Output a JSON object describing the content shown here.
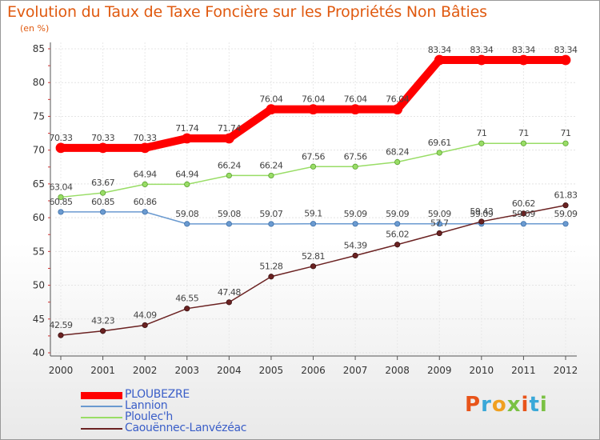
{
  "chart_data": {
    "type": "line",
    "title": "Evolution du Taux de Taxe Foncière sur les Propriétés Non Bâties",
    "subtitle": "(en %)",
    "x": [
      "2000",
      "2001",
      "2002",
      "2003",
      "2004",
      "2005",
      "2006",
      "2007",
      "2008",
      "2009",
      "2010",
      "2011",
      "2012"
    ],
    "ylim": [
      40,
      85
    ],
    "yticks": [
      40,
      45,
      50,
      55,
      60,
      65,
      70,
      75,
      80,
      85
    ],
    "grid": true,
    "legend_position": "bottom-left",
    "series": [
      {
        "name": "PLOUBEZRE",
        "color": "#ff0000",
        "values": [
          70.33,
          70.33,
          70.33,
          71.74,
          71.74,
          76.04,
          76.04,
          76.04,
          76.04,
          83.34,
          83.34,
          83.34,
          83.34
        ],
        "labels": [
          "70.33",
          "70.33",
          "70.33",
          "71.74",
          "71.74",
          "76.04",
          "76.04",
          "76.04",
          "76.04",
          "83.34",
          "83.34",
          "83.34",
          "83.34"
        ]
      },
      {
        "name": "Lannion",
        "color": "#6a9ad0",
        "values": [
          60.85,
          60.85,
          60.86,
          59.08,
          59.08,
          59.07,
          59.1,
          59.09,
          59.09,
          59.09,
          59.09,
          59.09,
          59.09
        ],
        "labels": [
          "60.85",
          "60.85",
          "60.86",
          "59.08",
          "59.08",
          "59.07",
          "59.1",
          "59.09",
          "59.09",
          "59.09",
          "59.09",
          "59.09",
          "59.09"
        ]
      },
      {
        "name": "Ploulec'h",
        "color": "#99dd66",
        "values": [
          63.04,
          63.67,
          64.94,
          64.94,
          66.24,
          66.24,
          67.56,
          67.56,
          68.24,
          69.61,
          71,
          71,
          71
        ],
        "labels": [
          "63.04",
          "63.67",
          "64.94",
          "64.94",
          "66.24",
          "66.24",
          "67.56",
          "67.56",
          "68.24",
          "69.61",
          "71",
          "71",
          "71"
        ]
      },
      {
        "name": "Caouënnec-Lanvézéac",
        "color": "#6b2222",
        "values": [
          42.59,
          43.23,
          44.09,
          46.55,
          47.48,
          51.28,
          52.81,
          54.39,
          56.02,
          57.7,
          59.43,
          60.62,
          61.83
        ],
        "labels": [
          "42.59",
          "43.23",
          "44.09",
          "46.55",
          "47.48",
          "51.28",
          "52.81",
          "54.39",
          "56.02",
          "57.7",
          "59.43",
          "60.62",
          "61.83"
        ]
      }
    ]
  },
  "logo": {
    "text": "Proxiti",
    "colors": [
      "#e8541a",
      "#3aa8d8",
      "#f0a020",
      "#7ac143",
      "#e8541a",
      "#3aa8d8",
      "#7ac143"
    ]
  }
}
